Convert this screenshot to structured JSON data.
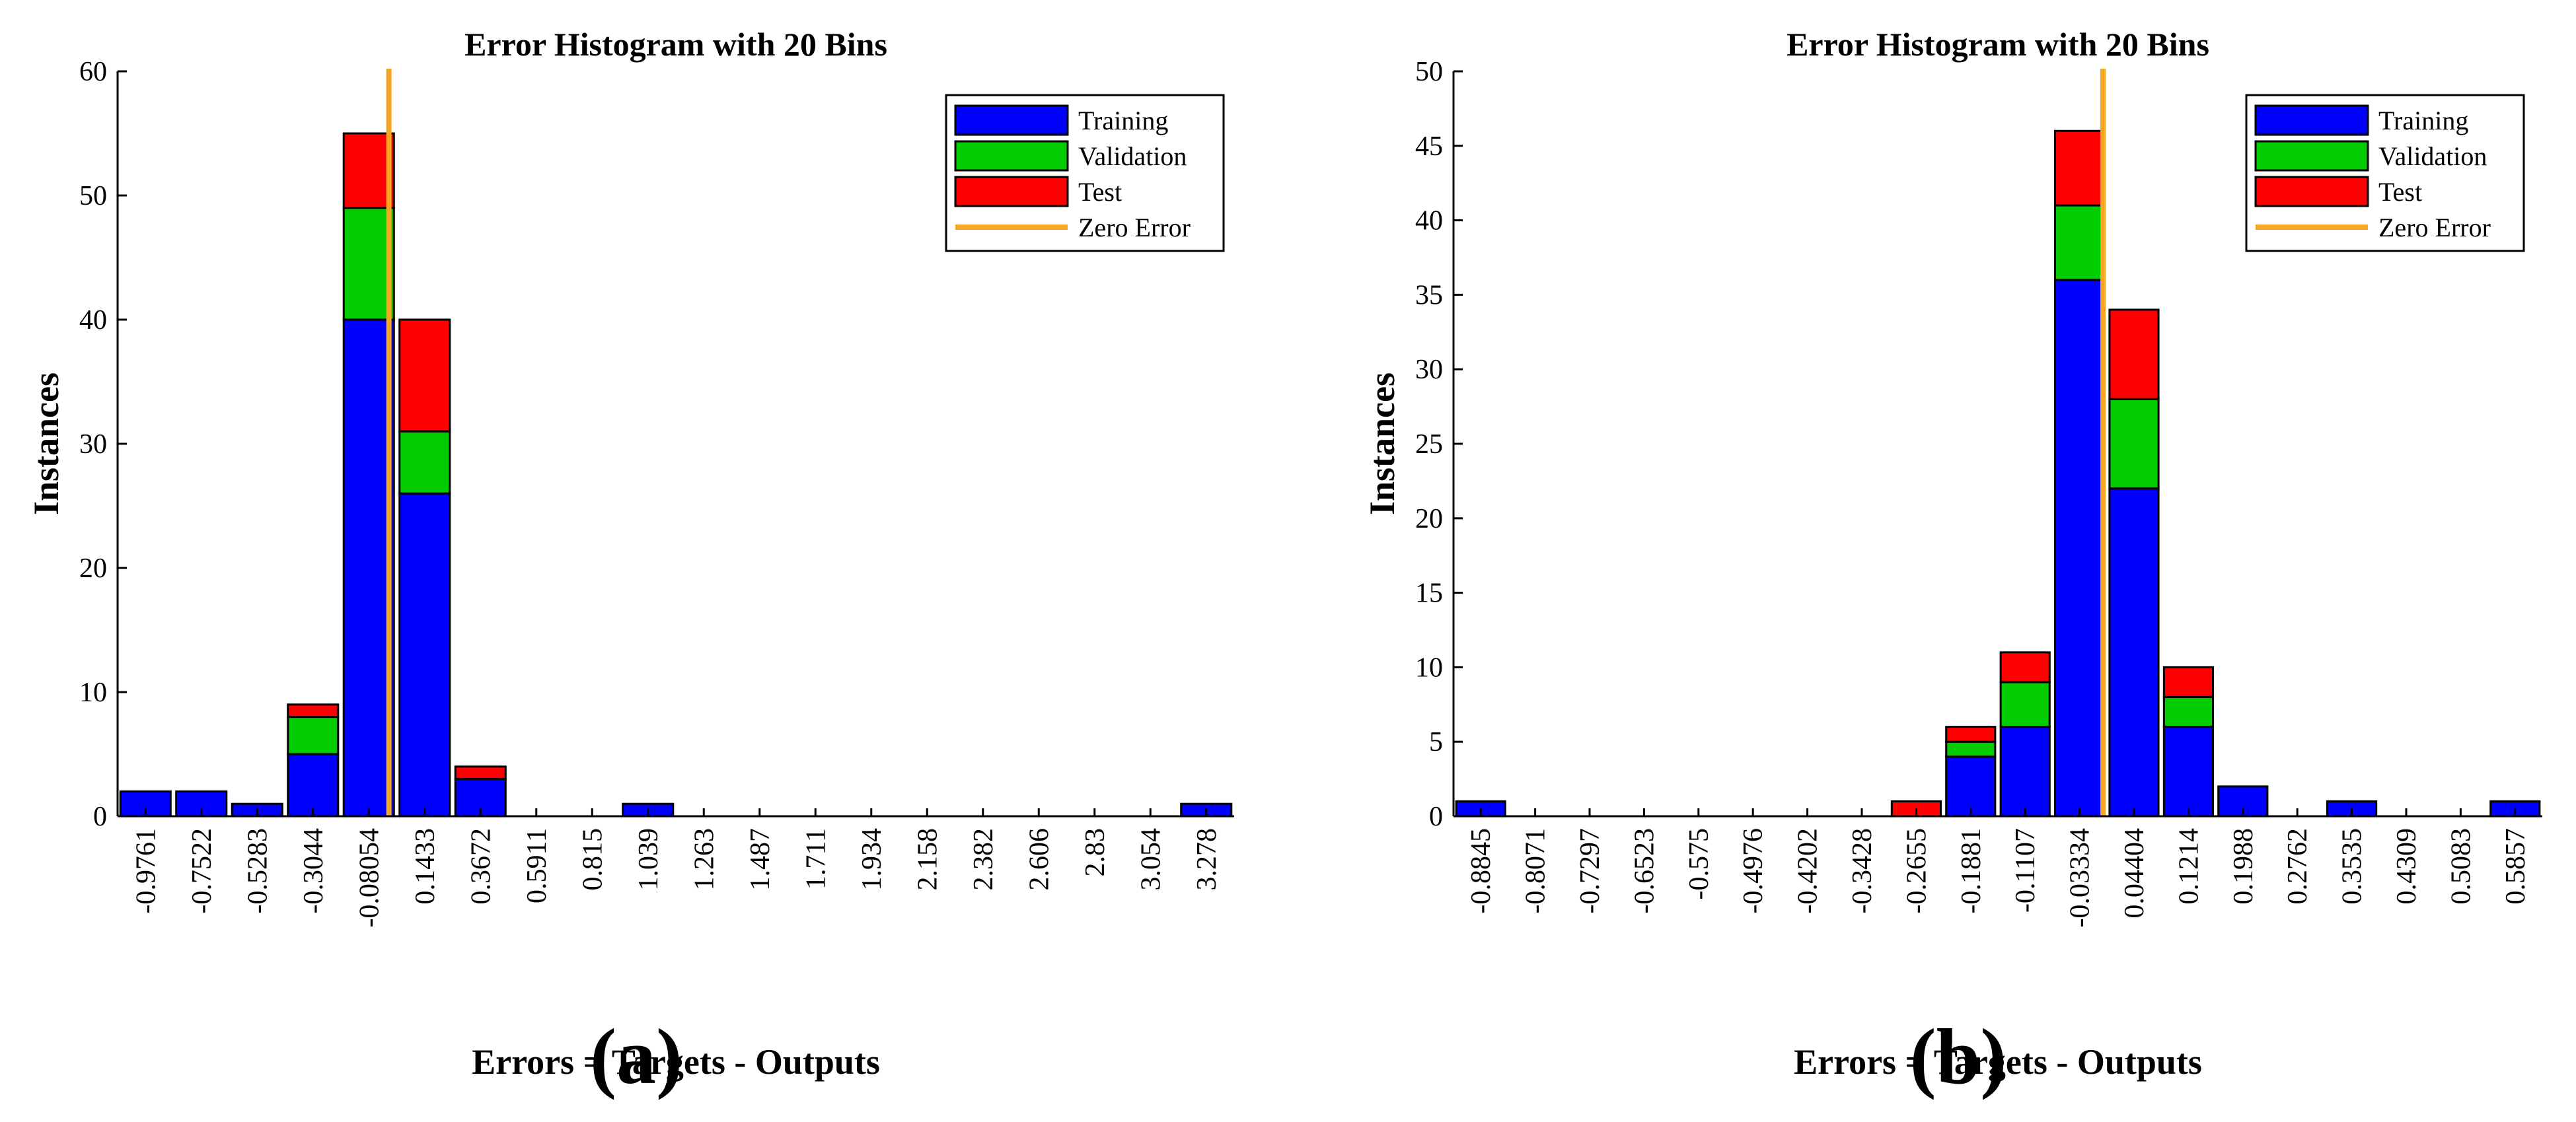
{
  "chart_data": [
    {
      "panel_label": "(a)",
      "type": "bar",
      "stacked": true,
      "title": "Error Histogram with 20 Bins",
      "xlabel": "Errors = Targets - Outputs",
      "ylabel": "Instances",
      "ylim": [
        0,
        60
      ],
      "yticks": [
        0,
        10,
        20,
        30,
        40,
        50,
        60
      ],
      "categories": [
        "-0.9761",
        "-0.7522",
        "-0.5283",
        "-0.3044",
        "-0.08054",
        "0.1433",
        "0.3672",
        "0.5911",
        "0.815",
        "1.039",
        "1.263",
        "1.487",
        "1.711",
        "1.934",
        "2.158",
        "2.382",
        "2.606",
        "2.83",
        "3.054",
        "3.278"
      ],
      "series": [
        {
          "name": "Training",
          "color": "#0000ff",
          "values": [
            2,
            2,
            1,
            5,
            40,
            26,
            3,
            0,
            0,
            1,
            0,
            0,
            0,
            0,
            0,
            0,
            0,
            0,
            0,
            1
          ]
        },
        {
          "name": "Validation",
          "color": "#00cc00",
          "values": [
            0,
            0,
            0,
            3,
            9,
            5,
            0,
            0,
            0,
            0,
            0,
            0,
            0,
            0,
            0,
            0,
            0,
            0,
            0,
            0
          ]
        },
        {
          "name": "Test",
          "color": "#ff0000",
          "values": [
            0,
            0,
            0,
            1,
            6,
            9,
            1,
            0,
            0,
            0,
            0,
            0,
            0,
            0,
            0,
            0,
            0,
            0,
            0,
            0
          ]
        }
      ],
      "zero_error": {
        "name": "Zero Error",
        "color": "#f5a623",
        "value": 0
      },
      "legend_position": "top-right",
      "grid": false
    },
    {
      "panel_label": "(b)",
      "type": "bar",
      "stacked": true,
      "title": "Error Histogram with 20 Bins",
      "xlabel": "Errors = Targets - Outputs",
      "ylabel": "Instances",
      "ylim": [
        0,
        50
      ],
      "yticks": [
        0,
        5,
        10,
        15,
        20,
        25,
        30,
        35,
        40,
        45,
        50
      ],
      "categories": [
        "-0.8845",
        "-0.8071",
        "-0.7297",
        "-0.6523",
        "-0.575",
        "-0.4976",
        "-0.4202",
        "-0.3428",
        "-0.2655",
        "-0.1881",
        "-0.1107",
        "-0.03334",
        "0.04404",
        "0.1214",
        "0.1988",
        "0.2762",
        "0.3535",
        "0.4309",
        "0.5083",
        "0.5857"
      ],
      "series": [
        {
          "name": "Training",
          "color": "#0000ff",
          "values": [
            1,
            0,
            0,
            0,
            0,
            0,
            0,
            0,
            0,
            4,
            6,
            36,
            22,
            6,
            2,
            0,
            1,
            0,
            0,
            1
          ]
        },
        {
          "name": "Validation",
          "color": "#00cc00",
          "values": [
            0,
            0,
            0,
            0,
            0,
            0,
            0,
            0,
            0,
            1,
            3,
            5,
            6,
            2,
            0,
            0,
            0,
            0,
            0,
            0
          ]
        },
        {
          "name": "Test",
          "color": "#ff0000",
          "values": [
            0,
            0,
            0,
            0,
            0,
            0,
            0,
            0,
            1,
            1,
            2,
            5,
            6,
            2,
            0,
            0,
            0,
            0,
            0,
            0
          ]
        }
      ],
      "zero_error": {
        "name": "Zero Error",
        "color": "#f5a623",
        "value": 0
      },
      "legend_position": "top-right",
      "grid": false
    }
  ]
}
